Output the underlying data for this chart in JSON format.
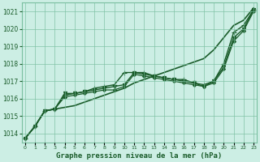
{
  "title": "Graphe pression niveau de la mer (hPa)",
  "ylabel_ticks": [
    1014,
    1015,
    1016,
    1017,
    1018,
    1019,
    1020,
    1021
  ],
  "xlim": [
    -0.3,
    23.3
  ],
  "ylim": [
    1013.5,
    1021.5
  ],
  "background_color": "#cceee4",
  "grid_color": "#7abfa0",
  "line_color": "#1a5c2a",
  "lines": [
    {
      "x": [
        0,
        1,
        2,
        3,
        4,
        5,
        6,
        7,
        8,
        9,
        10,
        11,
        12,
        13,
        14,
        15,
        16,
        17,
        18,
        19,
        20,
        21,
        22,
        23
      ],
      "y": [
        1013.7,
        1014.4,
        1015.3,
        1015.4,
        1015.5,
        1015.6,
        1015.8,
        1016.0,
        1016.2,
        1016.4,
        1016.6,
        1016.9,
        1017.1,
        1017.3,
        1017.5,
        1017.7,
        1017.9,
        1018.1,
        1018.3,
        1018.8,
        1019.5,
        1020.2,
        1020.5,
        1021.2
      ],
      "marker": null,
      "markersize": 0,
      "linewidth": 1.2
    },
    {
      "x": [
        0,
        1,
        2,
        3,
        4,
        5,
        6,
        7,
        8,
        9,
        10,
        11,
        12,
        13,
        14,
        15,
        16,
        17,
        18,
        19,
        20,
        21,
        22,
        23
      ],
      "y": [
        1013.7,
        1014.4,
        1015.3,
        1015.4,
        1016.2,
        1016.3,
        1016.4,
        1016.6,
        1016.7,
        1016.8,
        1017.5,
        1017.5,
        1017.5,
        1017.3,
        1017.2,
        1017.1,
        1017.1,
        1016.9,
        1016.8,
        1017.0,
        1018.0,
        1019.8,
        1020.2,
        1021.1
      ],
      "marker": "+",
      "markersize": 4,
      "linewidth": 1.0
    },
    {
      "x": [
        0,
        1,
        2,
        3,
        4,
        5,
        6,
        7,
        8,
        9,
        10,
        11,
        12,
        13,
        14,
        15,
        16,
        17,
        18,
        19,
        20,
        21,
        22,
        23
      ],
      "y": [
        1013.7,
        1014.4,
        1015.3,
        1015.4,
        1016.3,
        1016.3,
        1016.4,
        1016.5,
        1016.6,
        1016.7,
        1016.8,
        1017.5,
        1017.4,
        1017.3,
        1017.2,
        1017.1,
        1017.0,
        1016.9,
        1016.7,
        1017.0,
        1017.8,
        1019.5,
        1020.0,
        1021.1
      ],
      "marker": "v",
      "markersize": 3,
      "linewidth": 1.0
    },
    {
      "x": [
        0,
        1,
        2,
        3,
        4,
        5,
        6,
        7,
        8,
        9,
        10,
        11,
        12,
        13,
        14,
        15,
        16,
        17,
        18,
        19,
        20,
        21,
        22,
        23
      ],
      "y": [
        1013.7,
        1014.4,
        1015.3,
        1015.4,
        1016.1,
        1016.2,
        1016.3,
        1016.4,
        1016.5,
        1016.5,
        1016.7,
        1017.4,
        1017.3,
        1017.2,
        1017.1,
        1017.0,
        1016.9,
        1016.8,
        1016.7,
        1016.9,
        1017.7,
        1019.3,
        1019.9,
        1021.0
      ],
      "marker": "D",
      "markersize": 2,
      "linewidth": 0.9
    }
  ]
}
